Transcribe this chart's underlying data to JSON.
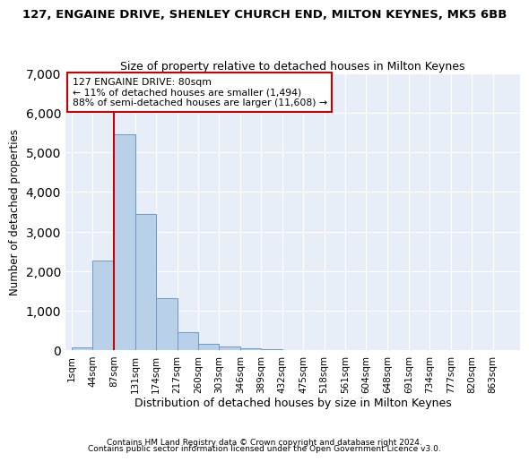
{
  "title1": "127, ENGAINE DRIVE, SHENLEY CHURCH END, MILTON KEYNES, MK5 6BB",
  "title2": "Size of property relative to detached houses in Milton Keynes",
  "xlabel": "Distribution of detached houses by size in Milton Keynes",
  "ylabel": "Number of detached properties",
  "footnote1": "Contains HM Land Registry data © Crown copyright and database right 2024.",
  "footnote2": "Contains public sector information licensed under the Open Government Licence v3.0.",
  "annotation_line1": "127 ENGAINE DRIVE: 80sqm",
  "annotation_line2": "← 11% of detached houses are smaller (1,494)",
  "annotation_line3": "88% of semi-detached houses are larger (11,608) →",
  "bar_color": "#b8d0e8",
  "bar_edge_color": "#6699cc",
  "ref_line_color": "#cc0000",
  "ref_line_x": 87,
  "annotation_box_color": "#ffffff",
  "annotation_box_edge": "#cc0000",
  "background_color": "#e8eef8",
  "tick_labels": [
    "1sqm",
    "44sqm",
    "87sqm",
    "131sqm",
    "174sqm",
    "217sqm",
    "260sqm",
    "303sqm",
    "346sqm",
    "389sqm",
    "432sqm",
    "475sqm",
    "518sqm",
    "561sqm",
    "604sqm",
    "648sqm",
    "691sqm",
    "734sqm",
    "777sqm",
    "820sqm",
    "863sqm"
  ],
  "bin_edges": [
    1,
    44,
    87,
    131,
    174,
    217,
    260,
    303,
    346,
    389,
    432,
    475,
    518,
    561,
    604,
    648,
    691,
    734,
    777,
    820,
    863
  ],
  "bar_heights": [
    75,
    2270,
    5450,
    3450,
    1320,
    470,
    170,
    90,
    60,
    40,
    15,
    8,
    4,
    3,
    2,
    1,
    1,
    0,
    0,
    0
  ],
  "ylim": [
    0,
    7000
  ],
  "yticks": [
    0,
    1000,
    2000,
    3000,
    4000,
    5000,
    6000,
    7000
  ]
}
